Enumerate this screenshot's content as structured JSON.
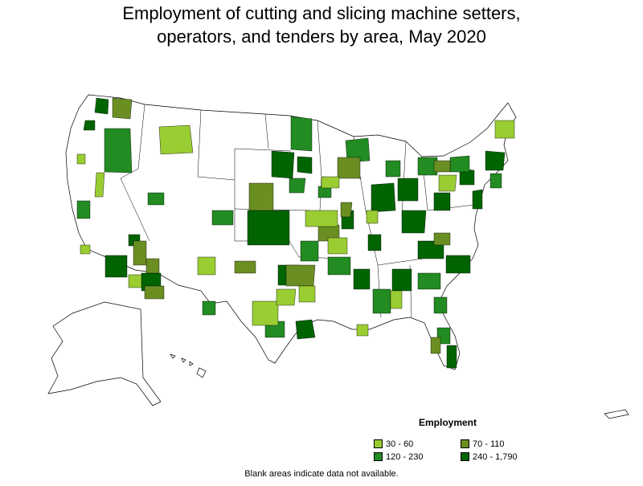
{
  "title_line1": "Employment of cutting and slicing machine setters,",
  "title_line2": "operators, and tenders by area, May 2020",
  "legend": {
    "title": "Employment",
    "items": [
      {
        "label": "30 - 60",
        "color": "#9acd32"
      },
      {
        "label": "70 - 110",
        "color": "#6b8e23"
      },
      {
        "label": "120 - 230",
        "color": "#228b22"
      },
      {
        "label": "240 - 1,790",
        "color": "#006400"
      }
    ]
  },
  "footnote": "Blank areas indicate data not available.",
  "colors": {
    "no_data": "#ffffff",
    "border": "#000000"
  }
}
